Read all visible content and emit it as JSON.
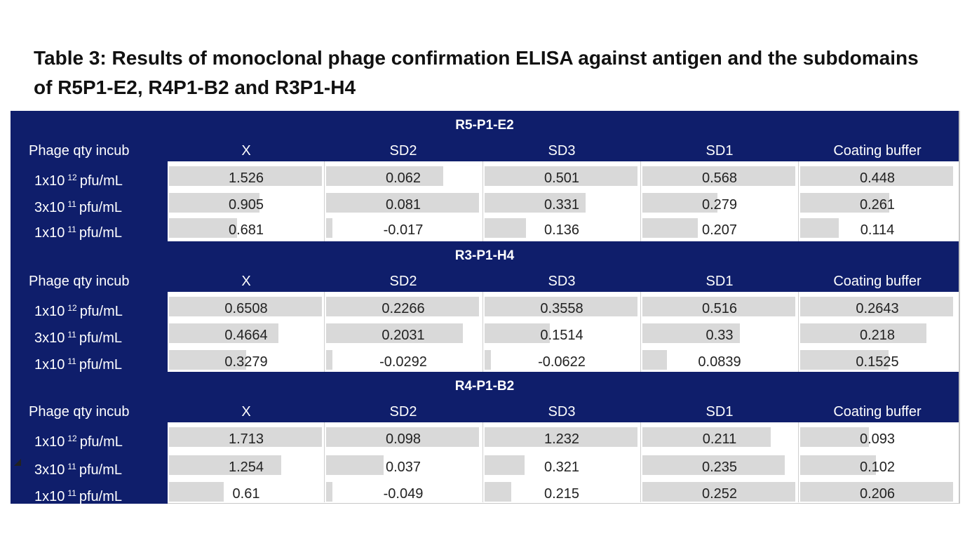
{
  "caption": "Table 3: Results of monoclonal phage confirmation ELISA against antigen and the subdomains of R5P1-E2, R4P1-B2 and R3P1-H4",
  "columns": [
    "Phage qty incub",
    "X",
    "SD2",
    "SD3",
    "SD1",
    "Coating buffer"
  ],
  "row_labels": [
    {
      "pre": "1x10",
      "exp": "12",
      "post": "pfu/mL"
    },
    {
      "pre": "3x10",
      "exp": "11",
      "post": "pfu/mL"
    },
    {
      "pre": "1x10",
      "exp": "11",
      "post": "pfu/mL"
    }
  ],
  "sections": [
    {
      "title": "R5-P1-E2",
      "rows": [
        [
          "1.526",
          "0.062",
          "0.501",
          "0.568",
          "0.448"
        ],
        [
          "0.905",
          "0.081",
          "0.331",
          "0.279",
          "0.261"
        ],
        [
          "0.681",
          "-0.017",
          "0.136",
          "0.207",
          "0.114"
        ]
      ]
    },
    {
      "title": "R3-P1-H4",
      "rows": [
        [
          "0.6508",
          "0.2266",
          "0.3558",
          "0.516",
          "0.2643"
        ],
        [
          "0.4664",
          "0.2031",
          "0.1514",
          "0.33",
          "0.218"
        ],
        [
          "0.3279",
          "-0.0292",
          "-0.0622",
          "0.0839",
          "0.1525"
        ]
      ]
    },
    {
      "title": "R4-P1-B2",
      "rows": [
        [
          "1.713",
          "0.098",
          "1.232",
          "0.211",
          "0.093"
        ],
        [
          "1.254",
          "0.037",
          "0.321",
          "0.235",
          "0.102"
        ],
        [
          "0.61",
          "-0.049",
          "0.215",
          "0.252",
          "0.206"
        ]
      ]
    }
  ],
  "colors": {
    "header_band": "#0f1e6b",
    "data_bar": "#d9d9d9"
  }
}
